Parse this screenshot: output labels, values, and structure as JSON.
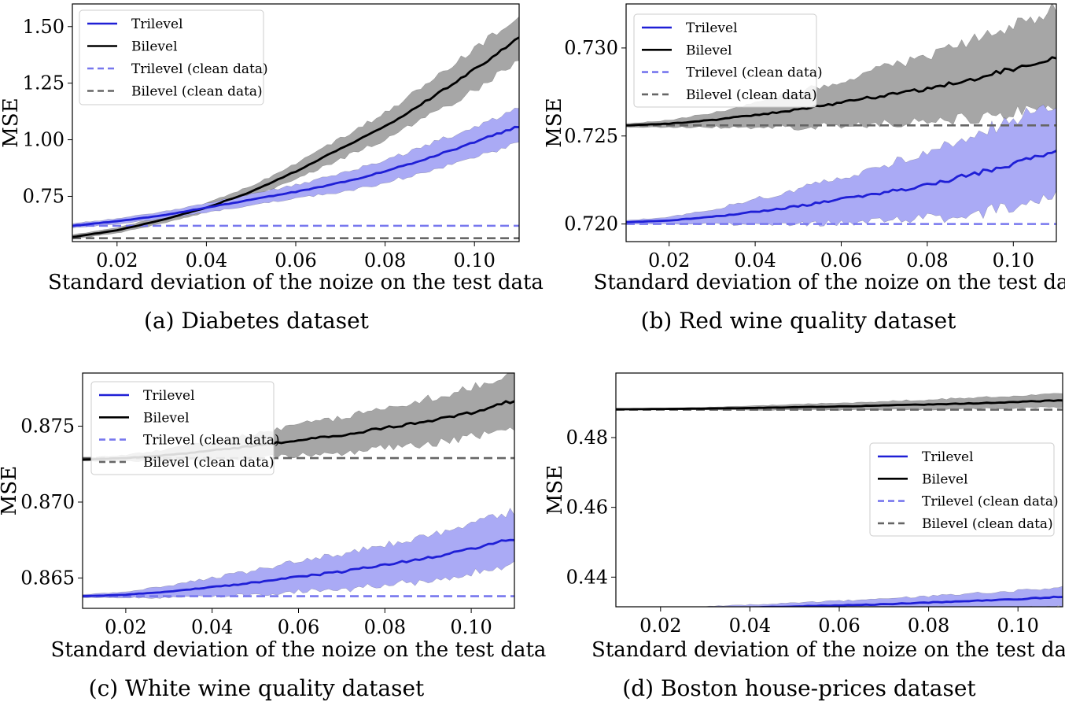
{
  "figure": {
    "colors": {
      "trilevel": "#1f1fd6",
      "bilevel": "#000000",
      "trilevel_clean": "#7777ee",
      "bilevel_clean": "#666666",
      "trilevel_band": "#aaaaf5",
      "bilevel_band": "#a6a6a6"
    }
  },
  "chart_data": [
    {
      "type": "line",
      "caption": "(a)  Diabetes dataset",
      "xlabel": "Standard deviation of the noize on the test data",
      "ylabel": "MSE",
      "xlim": [
        0.01,
        0.11
      ],
      "ylim": [
        0.55,
        1.6
      ],
      "xticks": [
        0.02,
        0.04,
        0.06,
        0.08,
        0.1
      ],
      "xtick_labels": [
        "0.02",
        "0.04",
        "0.06",
        "0.08",
        "0.10"
      ],
      "yticks": [
        0.75,
        1.0,
        1.25,
        1.5
      ],
      "ytick_labels": [
        "0.75",
        "1.00",
        "1.25",
        "1.50"
      ],
      "legend": [
        "Trilevel",
        "Bilevel",
        "Trilevel (clean data)",
        "Bilevel (clean data)"
      ],
      "legend_loc": "upper-left",
      "x": [
        0.01,
        0.02,
        0.03,
        0.04,
        0.05,
        0.06,
        0.07,
        0.08,
        0.09,
        0.1,
        0.11
      ],
      "series": [
        {
          "name": "Trilevel",
          "values": [
            0.62,
            0.64,
            0.665,
            0.7,
            0.735,
            0.77,
            0.81,
            0.86,
            0.92,
            0.99,
            1.06
          ],
          "band": [
            0.01,
            0.012,
            0.015,
            0.02,
            0.025,
            0.03,
            0.04,
            0.05,
            0.06,
            0.068,
            0.075
          ]
        },
        {
          "name": "Bilevel",
          "values": [
            0.57,
            0.6,
            0.645,
            0.7,
            0.77,
            0.86,
            0.96,
            1.06,
            1.18,
            1.31,
            1.45
          ],
          "band": [
            0.01,
            0.012,
            0.015,
            0.02,
            0.025,
            0.035,
            0.045,
            0.06,
            0.075,
            0.09,
            0.1
          ]
        }
      ],
      "clean_lines": [
        {
          "name": "Trilevel (clean data)",
          "value": 0.62
        },
        {
          "name": "Bilevel (clean data)",
          "value": 0.565
        }
      ]
    },
    {
      "type": "line",
      "caption": "(b)  Red wine quality dataset",
      "xlabel": "Standard deviation of the noize on the test data",
      "ylabel": "MSE",
      "xlim": [
        0.01,
        0.11
      ],
      "ylim": [
        0.719,
        0.7325
      ],
      "xticks": [
        0.02,
        0.04,
        0.06,
        0.08,
        0.1
      ],
      "xtick_labels": [
        "0.02",
        "0.04",
        "0.06",
        "0.08",
        "0.10"
      ],
      "yticks": [
        0.72,
        0.725,
        0.73
      ],
      "ytick_labels": [
        "0.720",
        "0.725",
        "0.730"
      ],
      "legend": [
        "Trilevel",
        "Bilevel",
        "Trilevel (clean data)",
        "Bilevel (clean data)"
      ],
      "legend_loc": "upper-left",
      "x": [
        0.01,
        0.02,
        0.03,
        0.04,
        0.05,
        0.06,
        0.07,
        0.08,
        0.09,
        0.1,
        0.11
      ],
      "series": [
        {
          "name": "Trilevel",
          "values": [
            0.7201,
            0.7202,
            0.7204,
            0.7207,
            0.721,
            0.7214,
            0.7218,
            0.7222,
            0.7228,
            0.7234,
            0.7242
          ],
          "band": [
            0.0001,
            0.0002,
            0.0004,
            0.0007,
            0.001,
            0.0013,
            0.0016,
            0.0019,
            0.0022,
            0.0025,
            0.0028
          ]
        },
        {
          "name": "Bilevel",
          "values": [
            0.7256,
            0.7257,
            0.7259,
            0.7262,
            0.7265,
            0.7269,
            0.7273,
            0.7277,
            0.7282,
            0.7288,
            0.7295
          ],
          "band": [
            0.0001,
            0.0002,
            0.0004,
            0.0007,
            0.001,
            0.0013,
            0.0016,
            0.0019,
            0.0022,
            0.0025,
            0.0028
          ]
        }
      ],
      "clean_lines": [
        {
          "name": "Trilevel (clean data)",
          "value": 0.72
        },
        {
          "name": "Bilevel (clean data)",
          "value": 0.7256
        }
      ]
    },
    {
      "type": "line",
      "caption": "(c)  White wine quality dataset",
      "xlabel": "Standard deviation of the noize on the test data",
      "ylabel": "MSE",
      "xlim": [
        0.01,
        0.11
      ],
      "ylim": [
        0.863,
        0.8785
      ],
      "xticks": [
        0.02,
        0.04,
        0.06,
        0.08,
        0.1
      ],
      "xtick_labels": [
        "0.02",
        "0.04",
        "0.06",
        "0.08",
        "0.10"
      ],
      "yticks": [
        0.865,
        0.87,
        0.875
      ],
      "ytick_labels": [
        "0.865",
        "0.870",
        "0.875"
      ],
      "legend": [
        "Trilevel",
        "Bilevel",
        "Trilevel (clean data)",
        "Bilevel (clean data)"
      ],
      "legend_loc": "upper-left",
      "x": [
        0.01,
        0.02,
        0.03,
        0.04,
        0.05,
        0.06,
        0.07,
        0.08,
        0.09,
        0.1,
        0.11
      ],
      "series": [
        {
          "name": "Trilevel",
          "values": [
            0.8638,
            0.8639,
            0.8641,
            0.8644,
            0.8647,
            0.8651,
            0.8654,
            0.8659,
            0.8663,
            0.8669,
            0.8676
          ],
          "band": [
            0.0001,
            0.0002,
            0.0004,
            0.0006,
            0.0008,
            0.001,
            0.0012,
            0.0013,
            0.0015,
            0.0016,
            0.0018
          ]
        },
        {
          "name": "Bilevel",
          "values": [
            0.8728,
            0.8729,
            0.8731,
            0.8734,
            0.8737,
            0.8741,
            0.8744,
            0.8749,
            0.8753,
            0.8759,
            0.8767
          ],
          "band": [
            0.0001,
            0.0002,
            0.0004,
            0.0006,
            0.0008,
            0.001,
            0.0012,
            0.0013,
            0.0015,
            0.0016,
            0.0018
          ]
        }
      ],
      "clean_lines": [
        {
          "name": "Trilevel (clean data)",
          "value": 0.8638
        },
        {
          "name": "Bilevel (clean data)",
          "value": 0.8729
        }
      ]
    },
    {
      "type": "line",
      "caption": "(d)  Boston house-prices dataset",
      "xlabel": "Standard deviation of the noize on the test data",
      "ylabel": "MSE",
      "xlim": [
        0.01,
        0.11
      ],
      "ylim": [
        0.4315,
        0.4985
      ],
      "xticks": [
        0.02,
        0.04,
        0.06,
        0.08,
        0.1
      ],
      "xtick_labels": [
        "0.02",
        "0.04",
        "0.06",
        "0.08",
        "0.10"
      ],
      "yticks": [
        0.44,
        0.46,
        0.48
      ],
      "ytick_labels": [
        "0.44",
        "0.46",
        "0.48"
      ],
      "legend": [
        "Trilevel",
        "Bilevel",
        "Trilevel (clean data)",
        "Bilevel (clean data)"
      ],
      "legend_loc": "center-right",
      "x": [
        0.01,
        0.02,
        0.03,
        0.04,
        0.05,
        0.06,
        0.07,
        0.08,
        0.09,
        0.1,
        0.11
      ],
      "series": [
        {
          "name": "Trilevel",
          "values": [
            0.4308,
            0.4309,
            0.4311,
            0.4313,
            0.4316,
            0.4319,
            0.4322,
            0.4327,
            0.4332,
            0.4337,
            0.4344
          ],
          "band": [
            0.0002,
            0.0003,
            0.0005,
            0.0008,
            0.001,
            0.0013,
            0.0016,
            0.0019,
            0.0022,
            0.0025,
            0.0028
          ]
        },
        {
          "name": "Bilevel",
          "values": [
            0.4881,
            0.4882,
            0.4883,
            0.4885,
            0.4887,
            0.4889,
            0.4892,
            0.4895,
            0.4898,
            0.4902,
            0.4907
          ],
          "band": [
            0.0001,
            0.0002,
            0.0004,
            0.0006,
            0.0008,
            0.001,
            0.0012,
            0.0014,
            0.0016,
            0.0018,
            0.002
          ]
        }
      ],
      "clean_lines": [
        {
          "name": "Trilevel (clean data)",
          "value": 0.4308
        },
        {
          "name": "Bilevel (clean data)",
          "value": 0.488
        }
      ]
    }
  ]
}
